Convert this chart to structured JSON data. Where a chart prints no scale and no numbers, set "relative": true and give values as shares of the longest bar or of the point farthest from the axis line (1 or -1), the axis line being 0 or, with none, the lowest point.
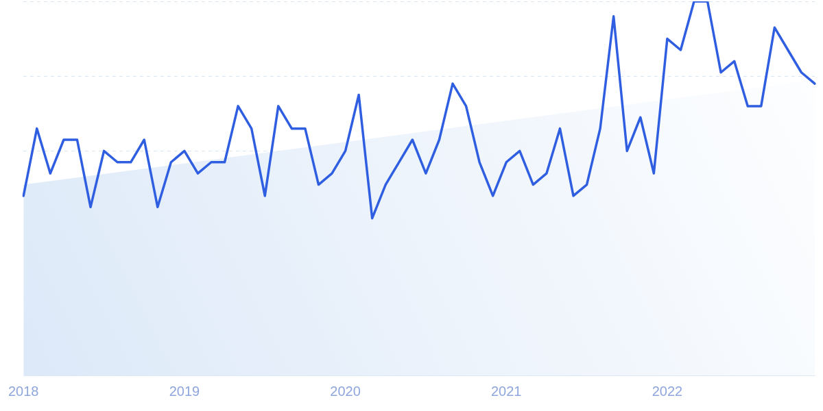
{
  "chart_data": {
    "type": "line",
    "relative": true,
    "grid": "y",
    "legend": false,
    "marker": "none",
    "line_style": "solid",
    "categories": [
      "2018",
      null,
      null,
      null,
      null,
      null,
      null,
      null,
      null,
      null,
      null,
      null,
      "2019",
      null,
      null,
      null,
      null,
      null,
      null,
      null,
      null,
      null,
      null,
      null,
      "2020",
      null,
      null,
      null,
      null,
      null,
      null,
      null,
      null,
      null,
      null,
      null,
      "2021",
      null,
      null,
      null,
      null,
      null,
      null,
      null,
      null,
      null,
      null,
      null,
      "2022",
      null,
      null,
      null,
      null,
      null,
      null,
      null,
      null,
      null,
      null,
      null
    ],
    "series": [
      {
        "color": "#2f5fe0",
        "values": [
          0.48,
          0.66,
          0.54,
          0.63,
          0.63,
          0.45,
          0.6,
          0.57,
          0.57,
          0.63,
          0.45,
          0.57,
          0.6,
          0.54,
          0.57,
          0.57,
          0.72,
          0.66,
          0.48,
          0.72,
          0.66,
          0.66,
          0.51,
          0.54,
          0.6,
          0.75,
          0.42,
          0.51,
          0.57,
          0.63,
          0.54,
          0.63,
          0.78,
          0.72,
          0.57,
          0.48,
          0.57,
          0.6,
          0.51,
          0.54,
          0.66,
          0.48,
          0.51,
          0.66,
          0.96,
          0.6,
          0.69,
          0.54,
          0.9,
          0.87,
          1,
          1,
          0.81,
          0.84,
          0.72,
          0.72,
          0.93,
          0.87,
          0.81,
          0.78
        ]
      },
      {
        "type": "area",
        "color": "#dbe8f8",
        "values": [
          0.51,
          null,
          null,
          null,
          null,
          null,
          null,
          null,
          null,
          null,
          null,
          null,
          null,
          null,
          null,
          null,
          null,
          null,
          null,
          null,
          null,
          null,
          null,
          null,
          null,
          null,
          null,
          null,
          null,
          null,
          null,
          null,
          null,
          null,
          null,
          null,
          null,
          null,
          null,
          null,
          null,
          null,
          null,
          null,
          null,
          null,
          null,
          null,
          null,
          null,
          null,
          null,
          null,
          null,
          null,
          null,
          null,
          null,
          null,
          0.79
        ]
      }
    ]
  }
}
